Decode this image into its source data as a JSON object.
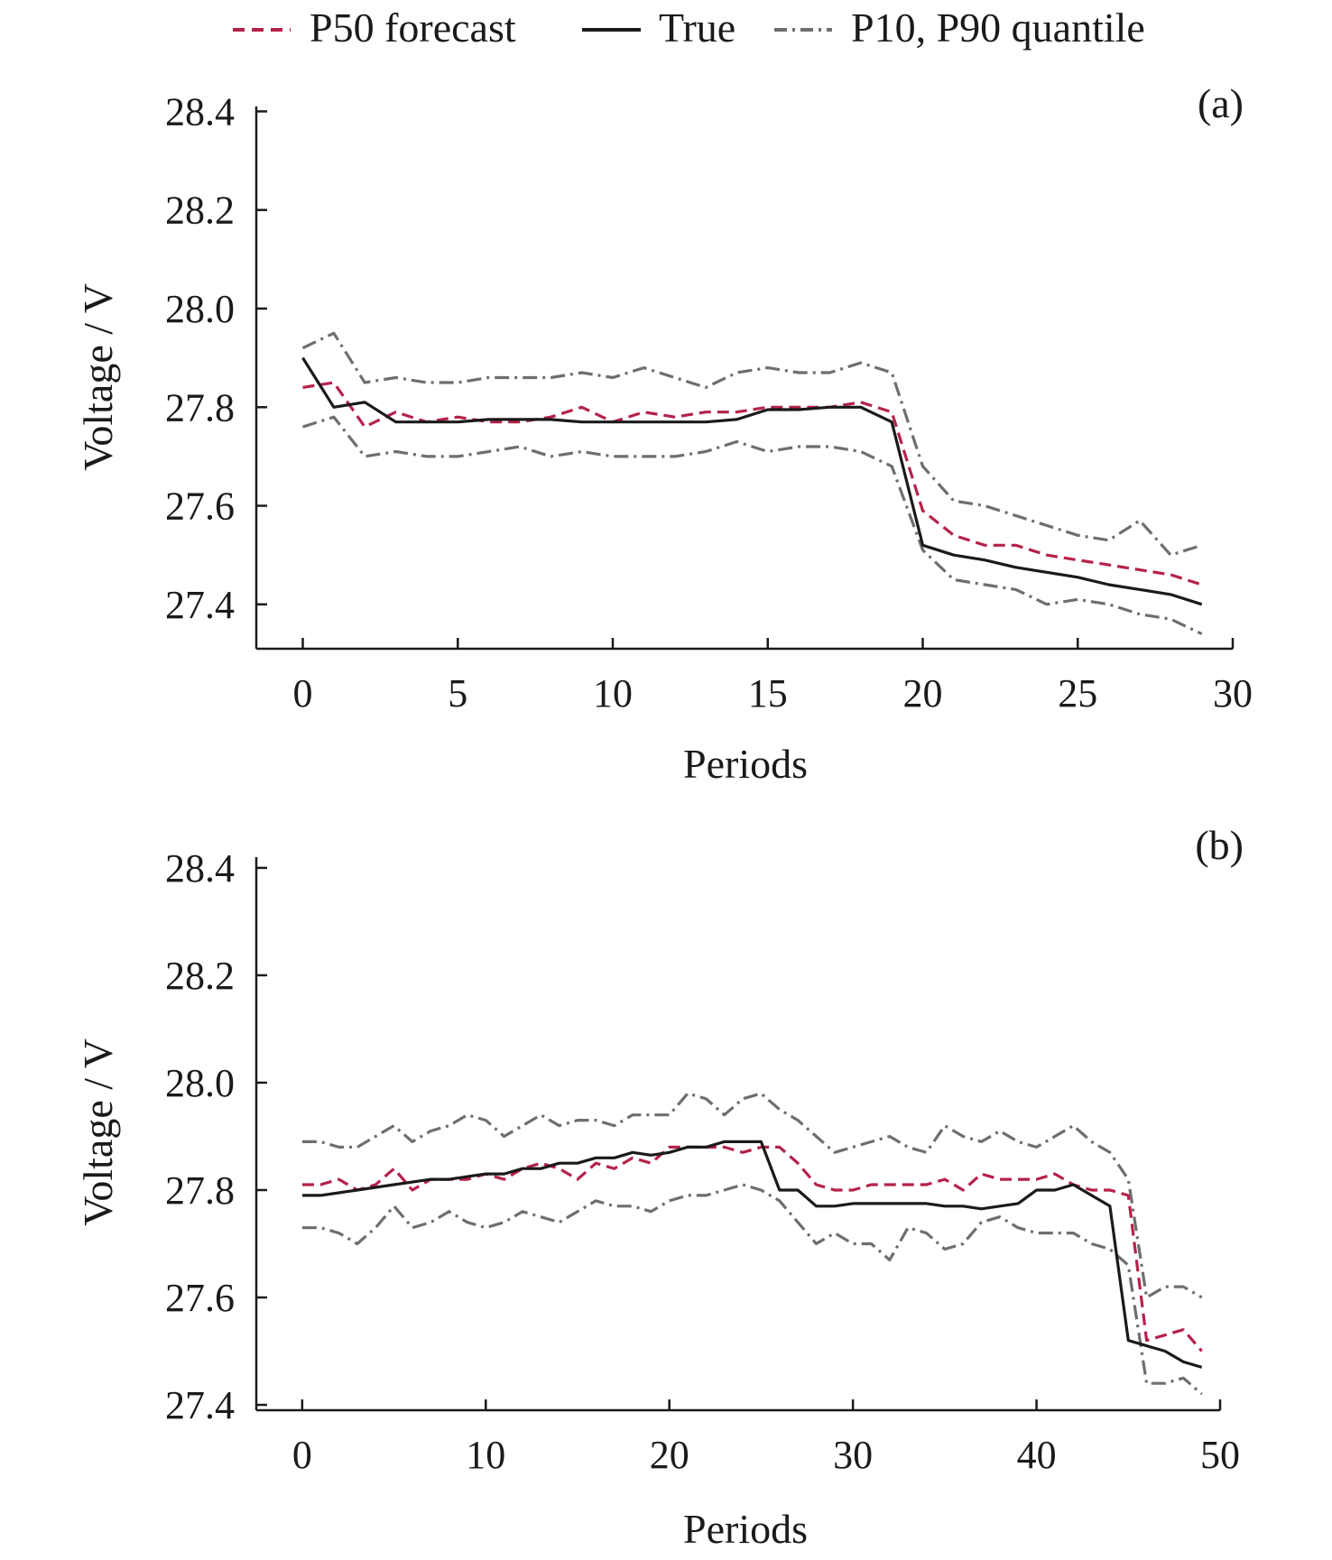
{
  "legend": {
    "p50_label": "P50 forecast",
    "true_label": "True",
    "quantile_label": "P10, P90 quantile"
  },
  "colors": {
    "true": "#1a1a1a",
    "p50": "#b5224a",
    "quantile": "#6e6e6e",
    "quantile_accent": "#1f8a5b",
    "axis": "#1a1a1a"
  },
  "chart_data": [
    {
      "type": "line",
      "panel_label": "(a)",
      "xlabel": "Periods",
      "ylabel": "Voltage / V",
      "xlim": [
        -1.5,
        30
      ],
      "ylim": [
        27.31,
        28.41
      ],
      "xticks": [
        0,
        5,
        10,
        15,
        20,
        25,
        30
      ],
      "yticks": [
        27.4,
        27.6,
        27.8,
        28.0,
        28.2,
        28.4
      ],
      "x": [
        0,
        1,
        2,
        3,
        4,
        5,
        6,
        7,
        8,
        9,
        10,
        11,
        12,
        13,
        14,
        15,
        16,
        17,
        18,
        19,
        20,
        21,
        22,
        23,
        24,
        25,
        26,
        27,
        28,
        29
      ],
      "series": [
        {
          "name": "True",
          "role": "true",
          "values": [
            27.9,
            27.8,
            27.81,
            27.77,
            27.77,
            27.77,
            27.775,
            27.775,
            27.775,
            27.77,
            27.77,
            27.77,
            27.77,
            27.77,
            27.775,
            27.795,
            27.795,
            27.8,
            27.8,
            27.77,
            27.52,
            27.5,
            27.49,
            27.475,
            27.465,
            27.455,
            27.44,
            27.43,
            27.42,
            27.4
          ]
        },
        {
          "name": "P50 forecast",
          "role": "p50",
          "values": [
            27.84,
            27.85,
            27.76,
            27.79,
            27.77,
            27.78,
            27.77,
            27.77,
            27.78,
            27.8,
            27.77,
            27.79,
            27.78,
            27.79,
            27.79,
            27.8,
            27.8,
            27.8,
            27.81,
            27.79,
            27.59,
            27.54,
            27.52,
            27.52,
            27.5,
            27.49,
            27.48,
            27.47,
            27.46,
            27.44
          ]
        },
        {
          "name": "P90",
          "role": "quantile",
          "values": [
            27.92,
            27.95,
            27.85,
            27.86,
            27.85,
            27.85,
            27.86,
            27.86,
            27.86,
            27.87,
            27.86,
            27.88,
            27.86,
            27.84,
            27.87,
            27.88,
            27.87,
            27.87,
            27.89,
            27.87,
            27.68,
            27.61,
            27.6,
            27.58,
            27.56,
            27.54,
            27.53,
            27.57,
            27.5,
            27.52
          ]
        },
        {
          "name": "P10",
          "role": "quantile",
          "values": [
            27.76,
            27.78,
            27.7,
            27.71,
            27.7,
            27.7,
            27.71,
            27.72,
            27.7,
            27.71,
            27.7,
            27.7,
            27.7,
            27.71,
            27.73,
            27.71,
            27.72,
            27.72,
            27.71,
            27.68,
            27.51,
            27.45,
            27.44,
            27.43,
            27.4,
            27.41,
            27.4,
            27.38,
            27.37,
            27.34
          ]
        }
      ]
    },
    {
      "type": "line",
      "panel_label": "(b)",
      "xlabel": "Periods",
      "ylabel": "Voltage / V",
      "xlim": [
        -2.5,
        50
      ],
      "ylim": [
        27.39,
        28.42
      ],
      "xticks": [
        0,
        10,
        20,
        30,
        40,
        50
      ],
      "yticks": [
        27.4,
        27.6,
        27.8,
        28.0,
        28.2,
        28.4
      ],
      "x": [
        0,
        1,
        2,
        3,
        4,
        5,
        6,
        7,
        8,
        9,
        10,
        11,
        12,
        13,
        14,
        15,
        16,
        17,
        18,
        19,
        20,
        21,
        22,
        23,
        24,
        25,
        26,
        27,
        28,
        29,
        30,
        31,
        32,
        33,
        34,
        35,
        36,
        37,
        38,
        39,
        40,
        41,
        42,
        43,
        44,
        45,
        46,
        47,
        48,
        49
      ],
      "series": [
        {
          "name": "True",
          "role": "true",
          "values": [
            27.79,
            27.79,
            27.795,
            27.8,
            27.805,
            27.81,
            27.815,
            27.82,
            27.82,
            27.825,
            27.83,
            27.83,
            27.84,
            27.84,
            27.85,
            27.85,
            27.86,
            27.86,
            27.87,
            27.865,
            27.87,
            27.88,
            27.88,
            27.89,
            27.89,
            27.89,
            27.8,
            27.8,
            27.77,
            27.77,
            27.775,
            27.775,
            27.775,
            27.775,
            27.775,
            27.77,
            27.77,
            27.765,
            27.77,
            27.775,
            27.8,
            27.8,
            27.81,
            27.79,
            27.77,
            27.52,
            27.51,
            27.5,
            27.48,
            27.47
          ]
        },
        {
          "name": "P50 forecast",
          "role": "p50",
          "values": [
            27.81,
            27.81,
            27.82,
            27.8,
            27.81,
            27.84,
            27.8,
            27.82,
            27.82,
            27.82,
            27.83,
            27.82,
            27.84,
            27.85,
            27.84,
            27.82,
            27.85,
            27.84,
            27.86,
            27.85,
            27.88,
            27.88,
            27.88,
            27.88,
            27.87,
            27.88,
            27.88,
            27.85,
            27.81,
            27.8,
            27.8,
            27.81,
            27.81,
            27.81,
            27.81,
            27.82,
            27.8,
            27.83,
            27.82,
            27.82,
            27.82,
            27.83,
            27.81,
            27.8,
            27.8,
            27.79,
            27.52,
            27.53,
            27.54,
            27.5
          ]
        },
        {
          "name": "P90",
          "role": "quantile",
          "values": [
            27.89,
            27.89,
            27.88,
            27.88,
            27.9,
            27.92,
            27.89,
            27.91,
            27.92,
            27.94,
            27.93,
            27.9,
            27.92,
            27.94,
            27.92,
            27.93,
            27.93,
            27.92,
            27.94,
            27.94,
            27.94,
            27.98,
            27.97,
            27.94,
            27.97,
            27.98,
            27.95,
            27.93,
            27.9,
            27.87,
            27.88,
            27.89,
            27.9,
            27.88,
            27.87,
            27.92,
            27.9,
            27.89,
            27.91,
            27.89,
            27.88,
            27.9,
            27.92,
            27.89,
            27.87,
            27.82,
            27.6,
            27.62,
            27.62,
            27.6
          ]
        },
        {
          "name": "P10",
          "role": "quantile",
          "values": [
            27.73,
            27.73,
            27.72,
            27.7,
            27.73,
            27.77,
            27.73,
            27.74,
            27.76,
            27.74,
            27.73,
            27.74,
            27.76,
            27.75,
            27.74,
            27.76,
            27.78,
            27.77,
            27.77,
            27.76,
            27.78,
            27.79,
            27.79,
            27.8,
            27.81,
            27.8,
            27.78,
            27.74,
            27.7,
            27.72,
            27.7,
            27.7,
            27.67,
            27.73,
            27.72,
            27.69,
            27.7,
            27.74,
            27.75,
            27.73,
            27.72,
            27.72,
            27.72,
            27.7,
            27.69,
            27.66,
            27.44,
            27.44,
            27.45,
            27.42
          ]
        }
      ]
    }
  ]
}
